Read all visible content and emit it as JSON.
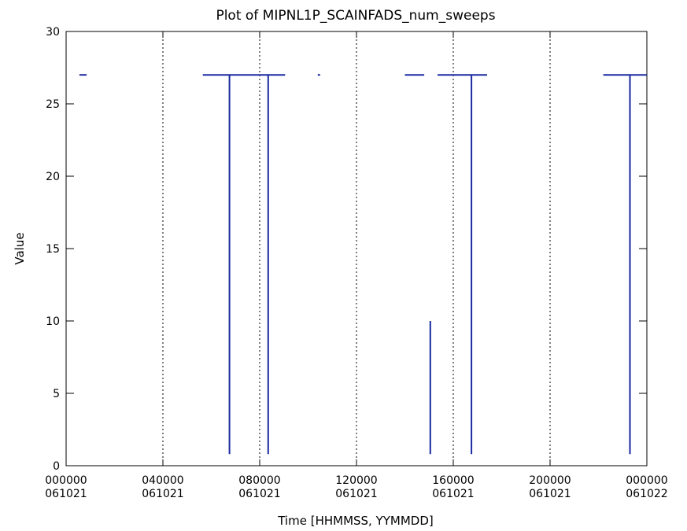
{
  "chart_data": {
    "type": "line",
    "title": "Plot of MIPNL1P_SCAINFADS_num_sweeps",
    "xlabel": "Time [HHMMSS, YYMMDD]",
    "ylabel": "Value",
    "xlim": [
      0,
      24
    ],
    "ylim": [
      0,
      30
    ],
    "x_unit": "hours since 000000 061021",
    "x_ticks": [
      {
        "x": 0,
        "time": "000000",
        "date": "061021"
      },
      {
        "x": 4,
        "time": "040000",
        "date": "061021"
      },
      {
        "x": 8,
        "time": "080000",
        "date": "061021"
      },
      {
        "x": 12,
        "time": "120000",
        "date": "061021"
      },
      {
        "x": 16,
        "time": "160000",
        "date": "061021"
      },
      {
        "x": 20,
        "time": "200000",
        "date": "061021"
      },
      {
        "x": 24,
        "time": "000000",
        "date": "061022"
      }
    ],
    "y_ticks": [
      0,
      5,
      10,
      15,
      20,
      25,
      30
    ],
    "vertical_reference_lines_x": [
      4,
      8,
      12,
      16,
      20
    ],
    "line_color": "#1a2aa0",
    "series": [
      {
        "segments": [
          [
            [
              0.55,
              27
            ],
            [
              0.85,
              27
            ]
          ],
          [
            [
              5.65,
              27
            ],
            [
              6.75,
              27
            ],
            [
              6.75,
              0.8
            ],
            [
              6.75,
              27
            ],
            [
              8.35,
              27
            ],
            [
              8.35,
              0.8
            ],
            [
              8.35,
              27
            ],
            [
              9.05,
              27
            ]
          ],
          [
            [
              10.4,
              27
            ],
            [
              10.5,
              27
            ]
          ],
          [
            [
              14.0,
              27
            ],
            [
              14.8,
              27
            ]
          ],
          [
            [
              15.05,
              10
            ],
            [
              15.05,
              0.8
            ]
          ],
          [
            [
              15.35,
              27
            ],
            [
              16.75,
              27
            ],
            [
              16.75,
              0.8
            ],
            [
              16.75,
              27
            ],
            [
              17.4,
              27
            ]
          ],
          [
            [
              22.2,
              27
            ],
            [
              23.3,
              27
            ],
            [
              23.3,
              0.8
            ],
            [
              23.3,
              27
            ],
            [
              24.0,
              27
            ]
          ]
        ]
      }
    ]
  }
}
